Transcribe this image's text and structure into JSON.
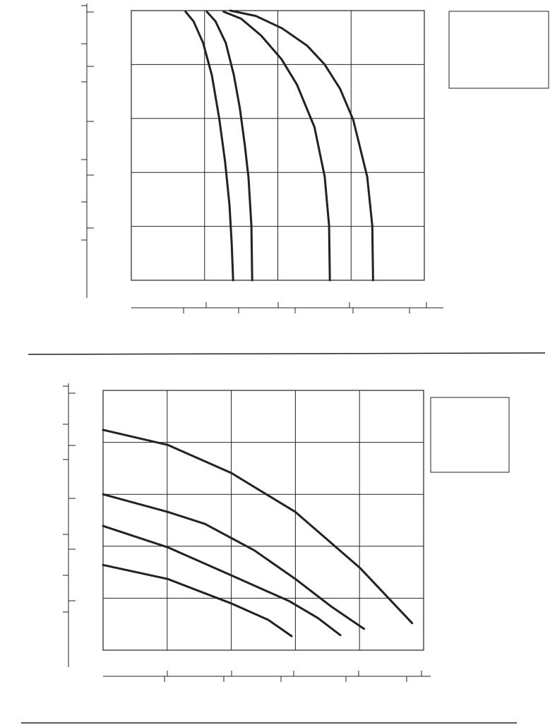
{
  "chart_data": [
    {
      "type": "line",
      "grid": true,
      "xlim": [
        0,
        4
      ],
      "ylim": [
        0,
        5
      ],
      "xticks": [
        1,
        2,
        3
      ],
      "yticks": [
        1,
        2,
        3,
        4
      ],
      "series": [
        {
          "color": "#222222",
          "x": [
            0.74,
            0.85,
            0.98,
            1.1,
            1.2,
            1.28,
            1.34,
            1.37,
            1.39
          ],
          "values": [
            4.98,
            4.8,
            4.4,
            3.8,
            3.0,
            2.2,
            1.4,
            0.7,
            0
          ]
        },
        {
          "color": "#222222",
          "x": [
            1.03,
            1.15,
            1.29,
            1.4,
            1.48,
            1.55,
            1.6,
            1.64,
            1.65
          ],
          "values": [
            4.98,
            4.8,
            4.4,
            3.8,
            3.2,
            2.5,
            1.9,
            1.0,
            0
          ]
        },
        {
          "color": "#222222",
          "x": [
            1.26,
            1.5,
            1.77,
            2.05,
            2.26,
            2.5,
            2.64,
            2.7,
            2.71
          ],
          "values": [
            4.98,
            4.85,
            4.54,
            4.1,
            3.63,
            2.84,
            1.92,
            1.01,
            0
          ]
        },
        {
          "color": "#222222",
          "x": [
            1.35,
            1.7,
            2.06,
            2.4,
            2.64,
            2.85,
            3.03,
            3.22,
            3.29,
            3.3
          ],
          "values": [
            5.0,
            4.9,
            4.67,
            4.35,
            4.0,
            3.55,
            2.97,
            1.92,
            1.01,
            0
          ]
        }
      ]
    },
    {
      "type": "line",
      "grid": true,
      "xlim": [
        0,
        5
      ],
      "ylim": [
        0,
        5
      ],
      "xticks": [
        1,
        2,
        3,
        4
      ],
      "yticks": [
        1,
        2,
        3,
        4
      ],
      "series": [
        {
          "color": "#222222",
          "x": [
            0,
            1.01,
            2.0,
            3.0,
            4.01,
            4.82
          ],
          "values": [
            4.24,
            3.95,
            3.41,
            2.66,
            1.58,
            0.52
          ]
        },
        {
          "color": "#222222",
          "x": [
            0,
            1.01,
            1.59,
            2.36,
            3.0,
            3.57,
            4.07
          ],
          "values": [
            3.0,
            2.66,
            2.43,
            1.92,
            1.37,
            0.83,
            0.41
          ]
        },
        {
          "color": "#222222",
          "x": [
            0,
            1.01,
            2.0,
            2.91,
            3.35,
            3.7
          ],
          "values": [
            2.39,
            1.98,
            1.44,
            0.94,
            0.62,
            0.29
          ]
        },
        {
          "color": "#222222",
          "x": [
            0,
            1.01,
            2.0,
            2.58,
            2.94
          ],
          "values": [
            1.64,
            1.37,
            0.9,
            0.58,
            0.27
          ]
        }
      ]
    }
  ]
}
